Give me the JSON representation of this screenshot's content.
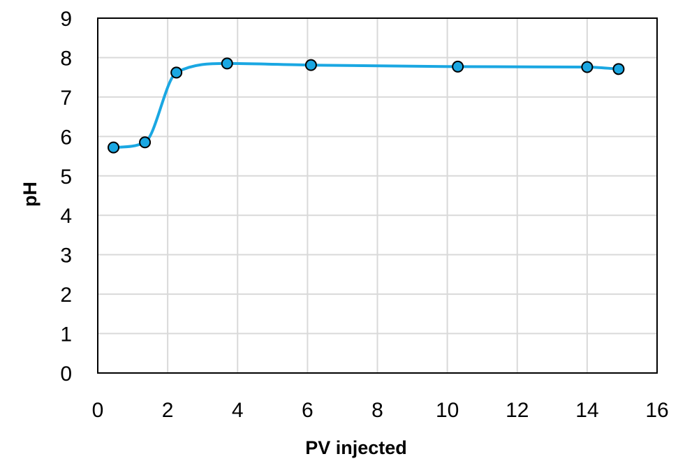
{
  "chart_data": {
    "type": "scatter",
    "title": "",
    "xlabel": "PV injected",
    "ylabel": "pH",
    "xlim": [
      0,
      16
    ],
    "ylim": [
      0,
      9
    ],
    "x_ticks": [
      "0",
      "2",
      "4",
      "6",
      "8",
      "10",
      "12",
      "14",
      "16"
    ],
    "y_ticks": [
      "0",
      "1",
      "2",
      "3",
      "4",
      "5",
      "6",
      "7",
      "8",
      "9"
    ],
    "grid": true,
    "smoothed_line": true,
    "series": [
      {
        "color": "#1aa7e2",
        "marker_color": "#1aa7e2",
        "marker_edge": "#000000",
        "x": [
          0.45,
          1.35,
          2.25,
          3.7,
          6.1,
          10.3,
          14.0,
          14.9
        ],
        "y": [
          5.72,
          5.85,
          7.62,
          7.85,
          7.81,
          7.77,
          7.76,
          7.71
        ]
      }
    ]
  }
}
